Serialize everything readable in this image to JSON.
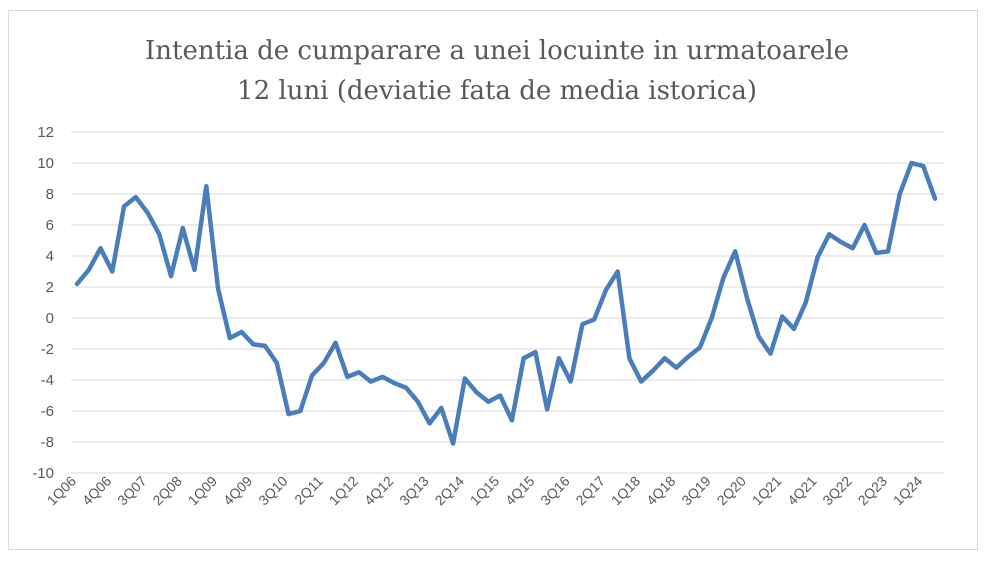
{
  "chart_data": {
    "type": "line",
    "title_lines": [
      "Intentia de cumparare a unei locuinte in urmatoarele",
      "12 luni (deviatie fata de media istorica)"
    ],
    "xlabel": "",
    "ylabel": "",
    "ylim": [
      -10,
      12
    ],
    "yticks": [
      12,
      10,
      8,
      6,
      4,
      2,
      0,
      -2,
      -4,
      -6,
      -8,
      -10
    ],
    "grid": true,
    "legend": "none",
    "color": "#4a7ebb",
    "x_tick_labels": [
      "1Q06",
      "4Q06",
      "3Q07",
      "2Q08",
      "1Q09",
      "4Q09",
      "3Q10",
      "2Q11",
      "1Q12",
      "4Q12",
      "3Q13",
      "2Q14",
      "1Q15",
      "4Q15",
      "3Q16",
      "2Q17",
      "1Q18",
      "4Q18",
      "3Q19",
      "2Q20",
      "1Q21",
      "4Q21",
      "3Q22",
      "2Q23",
      "1Q24"
    ],
    "x": [
      "1Q06",
      "2Q06",
      "3Q06",
      "4Q06",
      "1Q07",
      "2Q07",
      "3Q07",
      "4Q07",
      "1Q08",
      "2Q08",
      "3Q08",
      "4Q08",
      "1Q09",
      "2Q09",
      "3Q09",
      "4Q09",
      "1Q10",
      "2Q10",
      "3Q10",
      "4Q10",
      "1Q11",
      "2Q11",
      "3Q11",
      "4Q11",
      "1Q12",
      "2Q12",
      "3Q12",
      "4Q12",
      "1Q13",
      "2Q13",
      "3Q13",
      "4Q13",
      "1Q14",
      "2Q14",
      "3Q14",
      "4Q14",
      "1Q15",
      "2Q15",
      "3Q15",
      "4Q15",
      "1Q16",
      "2Q16",
      "3Q16",
      "4Q16",
      "1Q17",
      "2Q17",
      "3Q17",
      "4Q17",
      "1Q18",
      "2Q18",
      "3Q18",
      "4Q18",
      "1Q19",
      "2Q19",
      "3Q19",
      "4Q19",
      "1Q20",
      "2Q20",
      "3Q20",
      "4Q20",
      "1Q21",
      "2Q21",
      "3Q21",
      "4Q21",
      "1Q22",
      "2Q22",
      "3Q22",
      "4Q22",
      "1Q23",
      "2Q23",
      "3Q23",
      "4Q23",
      "1Q24",
      "2Q24"
    ],
    "values": [
      2.2,
      3.1,
      4.5,
      3.0,
      7.2,
      7.8,
      6.8,
      5.4,
      2.7,
      5.8,
      3.1,
      8.5,
      1.9,
      -1.3,
      -0.9,
      -1.7,
      -1.8,
      -2.9,
      -6.2,
      -6.0,
      -3.7,
      -2.9,
      -1.6,
      -3.8,
      -3.5,
      -4.1,
      -3.8,
      -4.2,
      -4.5,
      -5.4,
      -6.8,
      -5.8,
      -8.1,
      -3.9,
      -4.8,
      -5.4,
      -5.0,
      -6.6,
      -2.6,
      -2.2,
      -5.9,
      -2.6,
      -4.1,
      -0.4,
      -0.1,
      1.8,
      3.0,
      -2.6,
      -4.1,
      -3.4,
      -2.6,
      -3.2,
      -2.5,
      -1.9,
      0.0,
      2.6,
      4.3,
      1.3,
      -1.2,
      -2.3,
      0.1,
      -0.7,
      1.0,
      3.9,
      5.4,
      4.9,
      4.5,
      6.0,
      4.2,
      4.3,
      8.0,
      10.0,
      9.8,
      7.7
    ]
  }
}
